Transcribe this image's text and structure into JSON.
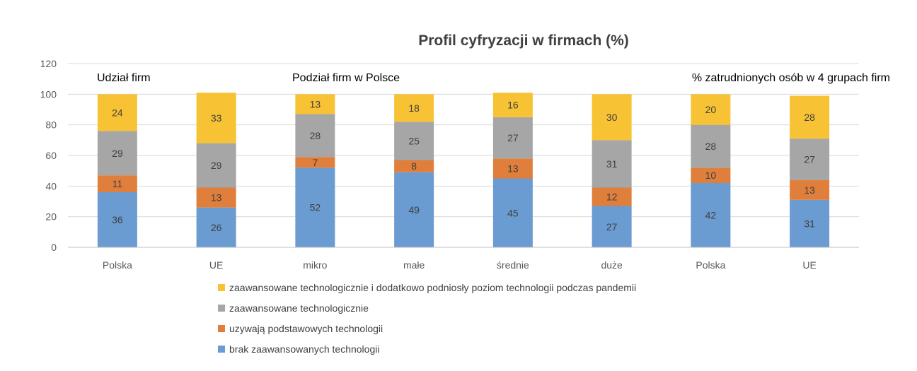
{
  "chart_data": {
    "type": "bar",
    "stacked": true,
    "title": "Profil cyfryzacji w firmach (%)",
    "section_labels": [
      "Udział firm",
      "Podział firm w Polsce",
      "% zatrudnionych osób w 4 grupach firm"
    ],
    "categories": [
      "Polska",
      "UE",
      "mikro",
      "małe",
      "średnie",
      "duże",
      "Polska",
      "UE"
    ],
    "ylim": [
      0,
      120
    ],
    "yticks": [
      0,
      20,
      40,
      60,
      80,
      100,
      120
    ],
    "grid": true,
    "legend_position": "bottom",
    "series": [
      {
        "name": "brak zaawansowanych technologii",
        "color": "#6a9bd1",
        "values": [
          36,
          26,
          52,
          49,
          45,
          27,
          42,
          31
        ]
      },
      {
        "name": "uzywają podstawowych technologii",
        "color": "#e07f3c",
        "values": [
          11,
          13,
          7,
          8,
          13,
          12,
          10,
          13
        ]
      },
      {
        "name": "zaawansowane technologicznie",
        "color": "#a6a6a6",
        "values": [
          29,
          29,
          28,
          25,
          27,
          31,
          28,
          27
        ]
      },
      {
        "name": "zaawansowane technologicznie i dodatkowo podniosły poziom technologii podczas pandemii",
        "color": "#f7c234",
        "values": [
          24,
          33,
          13,
          18,
          16,
          30,
          20,
          28
        ]
      }
    ]
  }
}
